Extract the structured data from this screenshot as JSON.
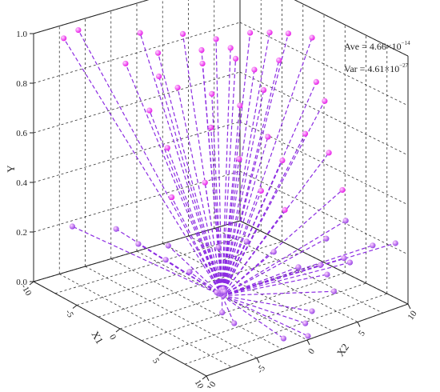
{
  "chart_data": {
    "type": "scatter",
    "title": "",
    "axes": {
      "x1": {
        "label": "X1",
        "range": [
          -10,
          10
        ],
        "ticks": [
          "-10",
          "-5",
          "0",
          "5",
          "10"
        ]
      },
      "x2": {
        "label": "X2",
        "range": [
          -10,
          10
        ],
        "ticks": [
          "-10",
          "-5",
          "0",
          "5",
          "10"
        ]
      },
      "y": {
        "label": "Y",
        "range": [
          0,
          1
        ],
        "ticks": [
          "0.0",
          "0.2",
          "0.4",
          "0.6",
          "0.8",
          "1.0"
        ]
      }
    },
    "grid": true,
    "center_point": {
      "x1": 0,
      "x2": 0,
      "y": 0
    },
    "annotations": {
      "ave_prefix": "Ave = 4.66×10",
      "ave_exp": "−14",
      "var_prefix": "Var = 4.61×10",
      "var_exp": "−27"
    },
    "colors": {
      "line": "#8b2be2",
      "point_high": "#e81ee8",
      "point_low": "#9a47e6",
      "grid": "#333333",
      "frame": "#222222"
    },
    "points": [
      {
        "x1": -9.5,
        "x2": -7.5,
        "y": 0.96
      },
      {
        "x1": -9.0,
        "x2": -6.5,
        "y": 0.99
      },
      {
        "x1": -6.0,
        "x2": -3.0,
        "y": 0.99
      },
      {
        "x1": -4.5,
        "x2": -2.5,
        "y": 0.93
      },
      {
        "x1": -4.0,
        "x2": -0.5,
        "y": 0.99
      },
      {
        "x1": -3.0,
        "x2": 0.5,
        "y": 0.93
      },
      {
        "x1": -2.5,
        "x2": 1.5,
        "y": 0.97
      },
      {
        "x1": -2.0,
        "x2": 2.5,
        "y": 0.93
      },
      {
        "x1": -1.5,
        "x2": 4.0,
        "y": 0.98
      },
      {
        "x1": -1.0,
        "x2": 5.5,
        "y": 0.97
      },
      {
        "x1": 0.0,
        "x2": 6.5,
        "y": 0.97
      },
      {
        "x1": 1.0,
        "x2": 8.0,
        "y": 0.95
      },
      {
        "x1": -3.5,
        "x2": 1.0,
        "y": 0.86
      },
      {
        "x1": -2.0,
        "x2": 3.0,
        "y": 0.88
      },
      {
        "x1": -1.0,
        "x2": 4.0,
        "y": 0.84
      },
      {
        "x1": -0.5,
        "x2": 6.0,
        "y": 0.86
      },
      {
        "x1": -5.0,
        "x2": -2.0,
        "y": 0.82
      },
      {
        "x1": -4.0,
        "x2": -1.0,
        "y": 0.78
      },
      {
        "x1": -6.5,
        "x2": -4.0,
        "y": 0.87
      },
      {
        "x1": -3.0,
        "x2": 1.5,
        "y": 0.74
      },
      {
        "x1": -1.5,
        "x2": 3.0,
        "y": 0.7
      },
      {
        "x1": -0.5,
        "x2": 4.5,
        "y": 0.76
      },
      {
        "x1": 1.5,
        "x2": 8.0,
        "y": 0.78
      },
      {
        "x1": 2.5,
        "x2": 8.0,
        "y": 0.72
      },
      {
        "x1": -5.5,
        "x2": -2.5,
        "y": 0.68
      },
      {
        "x1": -2.5,
        "x2": 1.0,
        "y": 0.62
      },
      {
        "x1": 0.0,
        "x2": 4.5,
        "y": 0.58
      },
      {
        "x1": 2.0,
        "x2": 6.5,
        "y": 0.6
      },
      {
        "x1": -4.0,
        "x2": -2.0,
        "y": 0.55
      },
      {
        "x1": -1.0,
        "x2": 2.5,
        "y": 0.5
      },
      {
        "x1": 0.5,
        "x2": 5.5,
        "y": 0.48
      },
      {
        "x1": 3.0,
        "x2": 8.0,
        "y": 0.52
      },
      {
        "x1": -2.0,
        "x2": 0.0,
        "y": 0.42
      },
      {
        "x1": 1.0,
        "x2": 3.0,
        "y": 0.4
      },
      {
        "x1": 4.0,
        "x2": 8.5,
        "y": 0.38
      },
      {
        "x1": -3.5,
        "x2": -2.0,
        "y": 0.36
      },
      {
        "x1": 2.0,
        "x2": 4.5,
        "y": 0.32
      },
      {
        "x1": 5.0,
        "x2": 8.0,
        "y": 0.28
      },
      {
        "x1": -8.5,
        "x2": -7.5,
        "y": 0.22
      },
      {
        "x1": -7.0,
        "x2": -4.5,
        "y": 0.2
      },
      {
        "x1": -5.0,
        "x2": -4.0,
        "y": 0.17
      },
      {
        "x1": -4.5,
        "x2": -1.5,
        "y": 0.14
      },
      {
        "x1": -3.0,
        "x2": -3.0,
        "y": 0.13
      },
      {
        "x1": -1.0,
        "x2": 0.5,
        "y": 0.17
      },
      {
        "x1": 0.5,
        "x2": 2.0,
        "y": 0.2
      },
      {
        "x1": 2.5,
        "x2": 3.0,
        "y": 0.18
      },
      {
        "x1": 4.5,
        "x2": 6.5,
        "y": 0.22
      },
      {
        "x1": 6.0,
        "x2": 7.0,
        "y": 0.16
      },
      {
        "x1": 7.0,
        "x2": 9.0,
        "y": 0.2
      },
      {
        "x1": 8.5,
        "x2": 10.0,
        "y": 0.22
      },
      {
        "x1": -2.0,
        "x2": -1.5,
        "y": 0.08
      },
      {
        "x1": 3.0,
        "x2": 5.0,
        "y": 0.1
      },
      {
        "x1": 5.5,
        "x2": 8.0,
        "y": 0.12
      },
      {
        "x1": 4.0,
        "x2": 7.0,
        "y": 0.06
      },
      {
        "x1": 6.0,
        "x2": 6.0,
        "y": 0.04
      },
      {
        "x1": 7.0,
        "x2": 3.0,
        "y": 0.02
      },
      {
        "x1": 8.0,
        "x2": 1.5,
        "y": 0.01
      },
      {
        "x1": 9.0,
        "x2": -1.5,
        "y": 0.01
      },
      {
        "x1": 9.5,
        "x2": 0.5,
        "y": 0.0
      },
      {
        "x1": 3.0,
        "x2": -2.5,
        "y": 0.02
      },
      {
        "x1": 5.0,
        "x2": -3.0,
        "y": 0.02
      },
      {
        "x1": 2.0,
        "x2": 8.0,
        "y": 0.05
      }
    ]
  }
}
